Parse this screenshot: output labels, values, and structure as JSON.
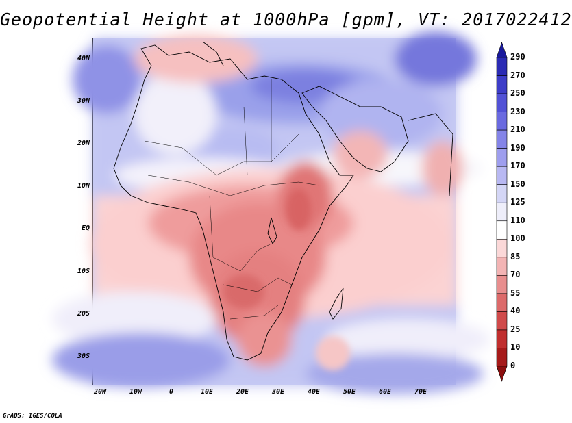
{
  "title": "Geopotential Height at 1000hPa [gpm], VT: 2017022412",
  "credit": "GrADS: IGES/COLA",
  "lat_labels": [
    "40N",
    "30N",
    "20N",
    "10N",
    "EQ",
    "10S",
    "20S",
    "30S"
  ],
  "lon_labels": [
    "20W",
    "10W",
    "0",
    "10E",
    "20E",
    "30E",
    "40E",
    "50E",
    "60E",
    "70E"
  ],
  "colorbar": {
    "levels": [
      "290",
      "270",
      "250",
      "230",
      "210",
      "190",
      "170",
      "150",
      "125",
      "110",
      "100",
      "85",
      "70",
      "55",
      "40",
      "25",
      "10",
      "0"
    ],
    "colors": [
      "#1a1a9c",
      "#2b2bb4",
      "#3d3dc8",
      "#5252d6",
      "#6a6ae0",
      "#8484e8",
      "#9e9eee",
      "#b8b8f2",
      "#d4d6f6",
      "#eeeefa",
      "#ffffff",
      "#fbd8d8",
      "#f3b4b4",
      "#e88e8e",
      "#dc6a6a",
      "#d04a4a",
      "#c02e2e",
      "#a61a1a",
      "#8c0e0e"
    ]
  }
}
